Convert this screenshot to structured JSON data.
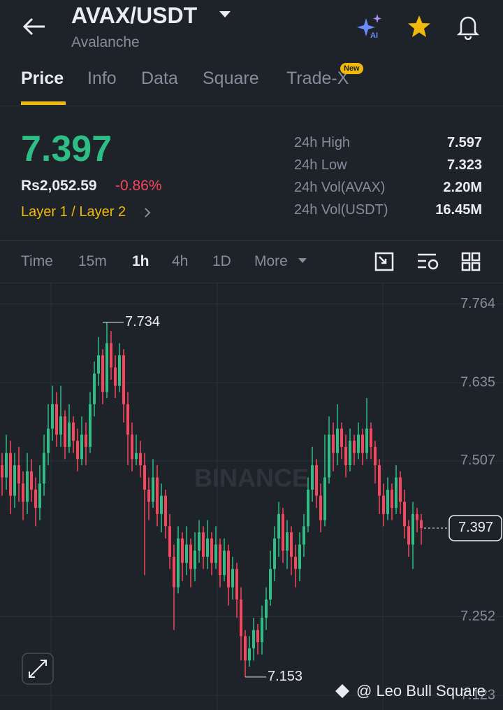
{
  "header": {
    "title": "AVAX/USDT",
    "subtitle": "Avalanche"
  },
  "tabs": [
    "Price",
    "Info",
    "Data",
    "Square",
    "Trade-X"
  ],
  "new_badge": "New",
  "price": {
    "last": "7.397",
    "local": "Rs2,052.59",
    "change": "-0.86%",
    "tag": "Layer 1 / Layer 2"
  },
  "stats": [
    {
      "label": "24h High",
      "value": "7.597"
    },
    {
      "label": "24h Low",
      "value": "7.323"
    },
    {
      "label": "24h Vol(AVAX)",
      "value": "2.20M"
    },
    {
      "label": "24h Vol(USDT)",
      "value": "16.45M"
    }
  ],
  "intervals": [
    "Time",
    "15m",
    "1h",
    "4h",
    "1D",
    "More"
  ],
  "chart_data": {
    "type": "candlestick",
    "open": [
      7.5,
      7.48,
      7.52,
      7.45,
      7.5,
      7.47,
      7.44,
      7.49,
      7.46,
      7.43,
      7.47,
      7.52,
      7.56,
      7.6,
      7.55,
      7.58,
      7.53,
      7.57,
      7.54,
      7.51,
      7.55,
      7.53,
      7.6,
      7.65,
      7.68,
      7.62,
      7.7,
      7.66,
      7.63,
      7.68,
      7.6,
      7.55,
      7.51,
      7.52,
      7.5,
      7.46,
      7.44,
      7.48,
      7.42,
      7.45,
      7.4,
      7.35,
      7.3,
      7.38,
      7.34,
      7.37,
      7.33,
      7.36,
      7.39,
      7.35,
      7.38,
      7.34,
      7.37,
      7.32,
      7.36,
      7.3,
      7.33,
      7.28,
      7.22,
      7.18,
      7.2,
      7.23,
      7.21,
      7.25,
      7.28,
      7.33,
      7.38,
      7.42,
      7.36,
      7.39,
      7.35,
      7.33,
      7.37,
      7.4,
      7.46,
      7.5,
      7.45,
      7.41,
      7.48,
      7.55,
      7.52,
      7.56,
      7.53,
      7.5,
      7.54,
      7.52,
      7.55,
      7.52,
      7.56,
      7.53,
      7.5,
      7.45,
      7.42,
      7.46,
      7.43,
      7.48,
      7.44,
      7.4,
      7.37,
      7.42,
      7.41
    ],
    "high": [
      7.52,
      7.55,
      7.54,
      7.52,
      7.53,
      7.49,
      7.52,
      7.51,
      7.48,
      7.5,
      7.55,
      7.6,
      7.63,
      7.62,
      7.63,
      7.59,
      7.6,
      7.58,
      7.56,
      7.58,
      7.57,
      7.62,
      7.67,
      7.71,
      7.69,
      7.734,
      7.72,
      7.68,
      7.7,
      7.69,
      7.62,
      7.57,
      7.55,
      7.54,
      7.52,
      7.48,
      7.51,
      7.5,
      7.47,
      7.46,
      7.42,
      7.37,
      7.4,
      7.39,
      7.4,
      7.38,
      7.39,
      7.41,
      7.4,
      7.41,
      7.39,
      7.4,
      7.38,
      7.38,
      7.37,
      7.35,
      7.34,
      7.3,
      7.23,
      7.22,
      7.25,
      7.24,
      7.27,
      7.3,
      7.36,
      7.4,
      7.44,
      7.43,
      7.41,
      7.4,
      7.37,
      7.39,
      7.42,
      7.48,
      7.53,
      7.51,
      7.47,
      7.55,
      7.58,
      7.57,
      7.6,
      7.57,
      7.55,
      7.56,
      7.55,
      7.57,
      7.56,
      7.61,
      7.57,
      7.54,
      7.51,
      7.47,
      7.48,
      7.47,
      7.5,
      7.49,
      7.46,
      7.41,
      7.44,
      7.43,
      7.42
    ],
    "low": [
      7.45,
      7.46,
      7.42,
      7.43,
      7.44,
      7.41,
      7.42,
      7.44,
      7.4,
      7.41,
      7.45,
      7.5,
      7.54,
      7.53,
      7.53,
      7.51,
      7.52,
      7.52,
      7.49,
      7.5,
      7.5,
      7.52,
      7.58,
      7.63,
      7.6,
      7.61,
      7.64,
      7.61,
      7.62,
      7.57,
      7.5,
      7.49,
      7.5,
      7.48,
      7.32,
      7.41,
      7.43,
      7.4,
      7.39,
      7.38,
      7.33,
      7.23,
      7.29,
      7.31,
      7.32,
      7.3,
      7.31,
      7.34,
      7.33,
      7.33,
      7.32,
      7.33,
      7.3,
      7.31,
      7.27,
      7.28,
      7.25,
      7.18,
      7.153,
      7.17,
      7.18,
      7.19,
      7.19,
      7.23,
      7.27,
      7.31,
      7.35,
      7.34,
      7.33,
      7.32,
      7.3,
      7.31,
      7.35,
      7.39,
      7.44,
      7.43,
      7.39,
      7.4,
      7.47,
      7.49,
      7.5,
      7.51,
      7.48,
      7.49,
      7.5,
      7.51,
      7.5,
      7.51,
      7.51,
      7.47,
      7.42,
      7.4,
      7.41,
      7.41,
      7.42,
      7.42,
      7.38,
      7.35,
      7.33,
      7.39,
      7.37
    ],
    "close": [
      7.48,
      7.52,
      7.45,
      7.5,
      7.47,
      7.44,
      7.49,
      7.46,
      7.43,
      7.47,
      7.52,
      7.56,
      7.6,
      7.55,
      7.58,
      7.53,
      7.57,
      7.54,
      7.51,
      7.55,
      7.53,
      7.6,
      7.65,
      7.68,
      7.62,
      7.7,
      7.66,
      7.63,
      7.68,
      7.6,
      7.55,
      7.51,
      7.52,
      7.5,
      7.46,
      7.44,
      7.48,
      7.42,
      7.45,
      7.4,
      7.35,
      7.3,
      7.38,
      7.34,
      7.37,
      7.33,
      7.36,
      7.39,
      7.35,
      7.38,
      7.34,
      7.37,
      7.32,
      7.36,
      7.3,
      7.33,
      7.28,
      7.22,
      7.18,
      7.2,
      7.23,
      7.21,
      7.25,
      7.28,
      7.33,
      7.38,
      7.42,
      7.36,
      7.39,
      7.35,
      7.33,
      7.37,
      7.4,
      7.46,
      7.5,
      7.45,
      7.41,
      7.48,
      7.55,
      7.52,
      7.56,
      7.53,
      7.5,
      7.54,
      7.52,
      7.55,
      7.52,
      7.56,
      7.53,
      7.5,
      7.45,
      7.42,
      7.46,
      7.43,
      7.48,
      7.44,
      7.4,
      7.37,
      7.42,
      7.41,
      7.397
    ],
    "ylim": [
      7.099,
      7.798
    ],
    "yticks": [
      7.764,
      7.635,
      7.507,
      7.252,
      7.123
    ],
    "last_price": 7.397,
    "max_label": 7.734,
    "min_label": 7.153,
    "up_color": "#2ebd85",
    "down_color": "#f6465d",
    "grid": true,
    "watermark": "BINANCE"
  },
  "credit": "@ Leo Bull Square"
}
